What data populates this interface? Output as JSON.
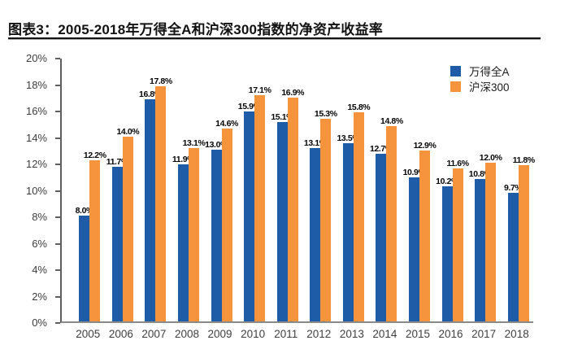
{
  "header": {
    "title": "图表3：2005-2018年万得全A和沪深300指数的净资产收益率"
  },
  "chart_data": {
    "type": "bar",
    "title": "图表3：2005-2018年万得全A和沪深300指数的净资产收益率",
    "categories": [
      "2005",
      "2006",
      "2007",
      "2008",
      "2009",
      "2010",
      "2011",
      "2012",
      "2013",
      "2014",
      "2015",
      "2016",
      "2017",
      "2018"
    ],
    "series": [
      {
        "name": "万得全A",
        "color": "#1E5CA8",
        "values": [
          8.0,
          11.7,
          16.8,
          11.9,
          13.0,
          15.9,
          15.1,
          13.1,
          13.5,
          12.7,
          10.9,
          10.2,
          10.8,
          9.7
        ],
        "labels": [
          "8.0%",
          "11.7%",
          "16.8%",
          "11.9%",
          "13.0%",
          "15.9%",
          "15.1%",
          "13.1%",
          "13.5%",
          "12.7%",
          "10.9%",
          "10.2%",
          "10.8%",
          "9.7%"
        ]
      },
      {
        "name": "沪深300",
        "color": "#F5943C",
        "values": [
          12.2,
          14.0,
          17.8,
          13.1,
          14.6,
          17.1,
          16.9,
          15.3,
          15.8,
          14.8,
          12.9,
          11.6,
          12.0,
          11.8
        ],
        "labels": [
          "12.2%",
          "14.0%",
          "17.8%",
          "13.1%",
          "14.6%",
          "17.1%",
          "16.9%",
          "15.3%",
          "15.8%",
          "14.8%",
          "12.9%",
          "11.6%",
          "12.0%",
          "11.8%"
        ]
      }
    ],
    "xlabel": "",
    "ylabel": "",
    "ylim": [
      0,
      20
    ],
    "ytick_step": 2,
    "ytick_labels": [
      "0%",
      "2%",
      "4%",
      "6%",
      "8%",
      "10%",
      "12%",
      "14%",
      "16%",
      "18%",
      "20%"
    ],
    "grid": false,
    "legend_position": "top-right",
    "axis_color": "#5f5f5f",
    "tick_label_color": "#3d3d3d",
    "value_label_color": "#050505"
  }
}
